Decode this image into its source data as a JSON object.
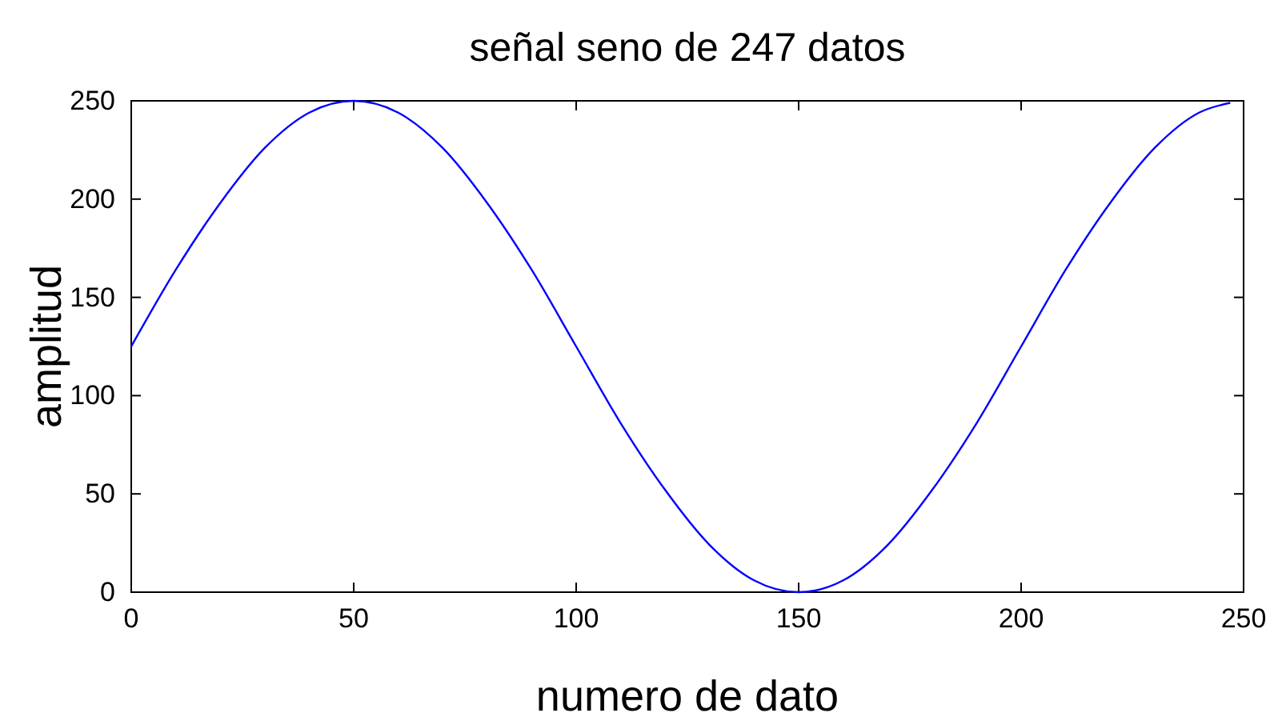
{
  "chart_data": {
    "type": "line",
    "title": "señal seno de 247 datos",
    "xlabel": "numero de dato",
    "ylabel": "amplitud",
    "x": [
      0,
      10,
      20,
      30,
      40,
      50,
      60,
      70,
      80,
      90,
      100,
      110,
      120,
      130,
      140,
      150,
      160,
      170,
      180,
      190,
      200,
      210,
      220,
      230,
      240,
      247
    ],
    "series": [
      {
        "color": "#0000ff",
        "values": [
          125,
          164,
          198,
          226,
          244,
          250,
          244,
          226,
          198,
          164,
          125,
          86,
          52,
          24,
          6,
          0,
          6,
          24,
          52,
          86,
          125,
          164,
          198,
          226,
          244,
          249
        ]
      }
    ],
    "xlim": [
      0,
      250
    ],
    "xticks": [
      0,
      50,
      100,
      150,
      200,
      250
    ],
    "ylim": [
      0,
      250
    ],
    "yticks": [
      0,
      50,
      100,
      150,
      200,
      250
    ],
    "grid": false,
    "marker": "none",
    "line_style": "solid"
  }
}
